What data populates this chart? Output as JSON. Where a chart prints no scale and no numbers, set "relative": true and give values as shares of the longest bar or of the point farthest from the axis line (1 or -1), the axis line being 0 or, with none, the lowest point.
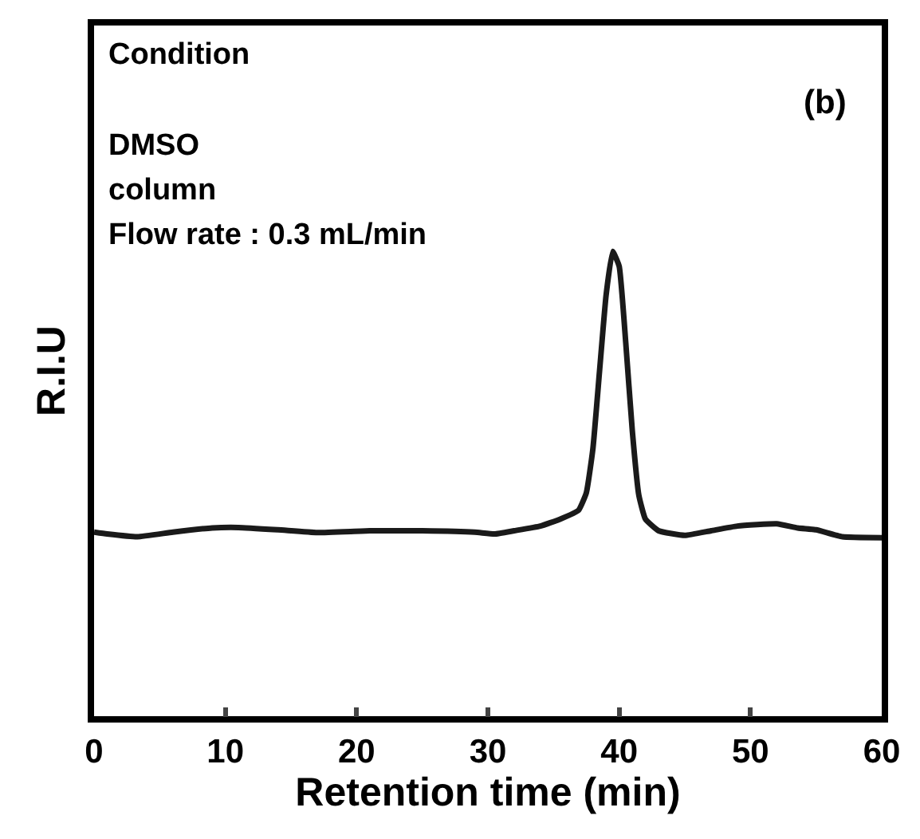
{
  "chart_data": {
    "type": "line",
    "relative": true,
    "xlabel": "Retention time (min)",
    "ylabel": "R.I.U",
    "xlim": [
      0,
      60
    ],
    "xticks": [
      0,
      10,
      20,
      30,
      40,
      50,
      60
    ],
    "marker": "none",
    "line_style": "solid",
    "annotations": [
      "Condition",
      "(b)",
      "DMSO",
      "column",
      "Flow rate : 0.3 mL/min"
    ],
    "x": [
      0,
      1,
      3.3,
      6,
      9,
      11,
      14,
      17,
      21,
      25,
      29,
      30.5,
      32,
      34,
      35.5,
      36.9,
      37.5,
      38,
      38.5,
      39,
      39.5,
      40,
      40.5,
      41,
      41.5,
      42,
      43,
      45,
      47,
      49,
      52,
      53.6,
      55,
      57,
      60
    ],
    "series": [
      {
        "color": "#1a1a1a",
        "values": [
          0.396,
          0.392,
          0.386,
          0.396,
          0.405,
          0.406,
          0.401,
          0.395,
          0.399,
          0.399,
          0.396,
          0.392,
          0.399,
          0.409,
          0.424,
          0.443,
          0.481,
          0.576,
          0.741,
          0.905,
          1.0,
          0.968,
          0.804,
          0.614,
          0.475,
          0.424,
          0.399,
          0.389,
          0.399,
          0.409,
          0.414,
          0.405,
          0.401,
          0.386,
          0.384
        ]
      }
    ]
  }
}
